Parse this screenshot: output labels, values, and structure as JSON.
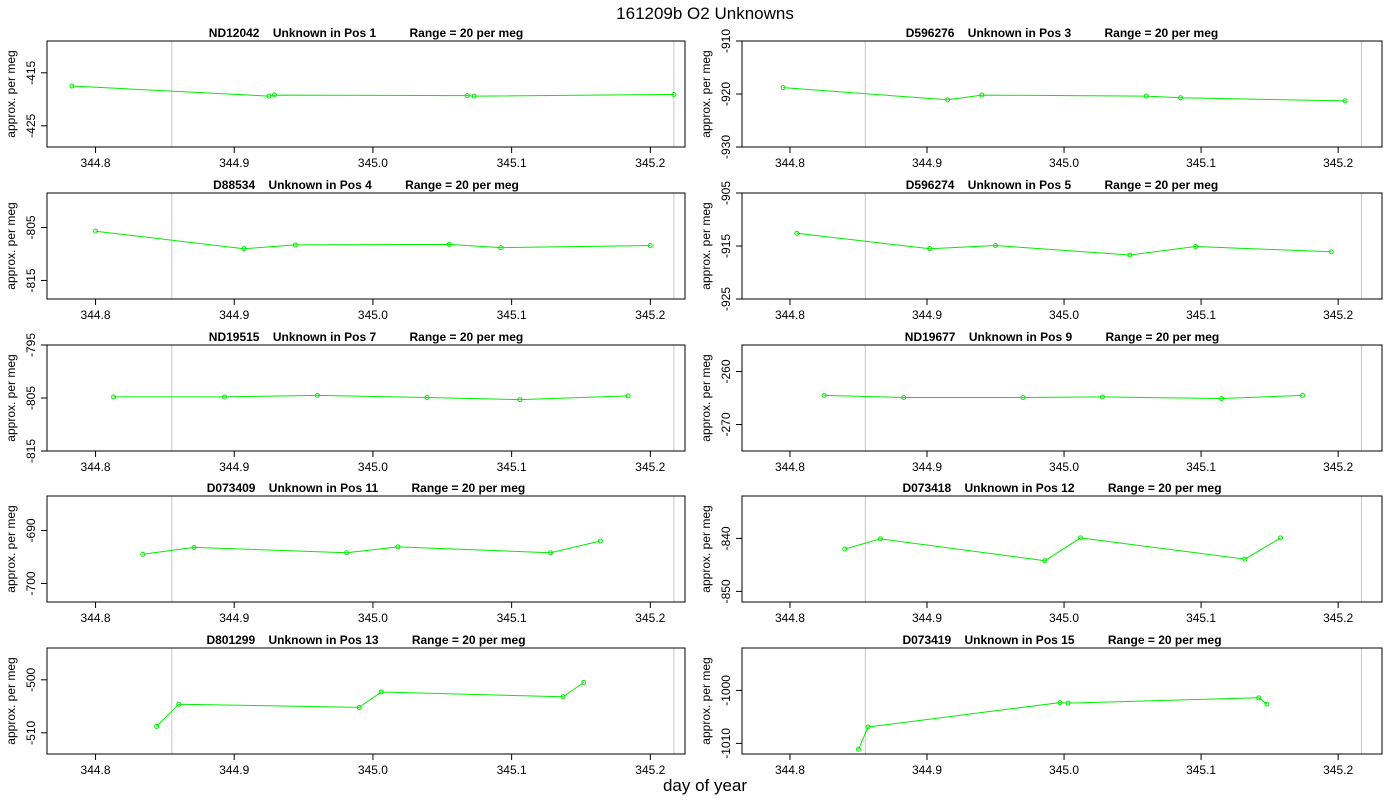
{
  "figure": {
    "title": "161209b  O2 Unknowns",
    "xlabel": "day of year"
  },
  "colors": {
    "series": "#00ee00",
    "marker": "#00ee00",
    "vline": "#c8c8c8"
  },
  "chart_data": [
    {
      "type": "line",
      "title": "ND12042    Unknown in Pos 1          Range = 20 per meg",
      "ylabel": "approx. per meg",
      "xlim": [
        344.765,
        345.225
      ],
      "ylim": [
        -429,
        -409
      ],
      "xticks": [
        344.8,
        344.9,
        345.0,
        345.1,
        345.2
      ],
      "xtick_labels": [
        "344.8",
        "344.9",
        "345.0",
        "345.1",
        "345.2"
      ],
      "yticks": [
        -415,
        -425
      ],
      "ytick_labels": [
        "-415",
        "-425"
      ],
      "vlines": [
        344.855,
        345.217
      ],
      "x": [
        344.783,
        344.925,
        344.929,
        345.068,
        345.073,
        345.217
      ],
      "y": [
        -417.5,
        -419.4,
        -419.2,
        -419.3,
        -419.4,
        -419.1
      ]
    },
    {
      "type": "line",
      "title": "D596276    Unknown in Pos 3          Range = 20 per meg",
      "ylabel": "approx. per meg",
      "xlim": [
        344.765,
        345.232
      ],
      "ylim": [
        -930,
        -910
      ],
      "xticks": [
        344.8,
        344.9,
        345.0,
        345.1,
        345.2
      ],
      "xtick_labels": [
        "344.8",
        "344.9",
        "345.0",
        "345.1",
        "345.2"
      ],
      "yticks": [
        -910,
        -920,
        -930
      ],
      "ytick_labels": [
        "-910",
        "-920",
        "-930"
      ],
      "vlines": [
        344.855,
        345.217
      ],
      "x": [
        344.795,
        344.915,
        344.94,
        345.06,
        345.085,
        345.205
      ],
      "y": [
        -918.8,
        -921.1,
        -920.2,
        -920.4,
        -920.7,
        -921.3
      ]
    },
    {
      "type": "line",
      "title": "D88534    Unknown in Pos 4          Range = 20 per meg",
      "ylabel": "approx. per meg",
      "xlim": [
        344.765,
        345.225
      ],
      "ylim": [
        -818.5,
        -798.5
      ],
      "xticks": [
        344.8,
        344.9,
        345.0,
        345.1,
        345.2
      ],
      "xtick_labels": [
        "344.8",
        "344.9",
        "345.0",
        "345.1",
        "345.2"
      ],
      "yticks": [
        -805,
        -815
      ],
      "ytick_labels": [
        "-805",
        "-815"
      ],
      "vlines": [
        344.855,
        345.217
      ],
      "x": [
        344.8,
        344.907,
        344.944,
        345.055,
        345.092,
        345.2
      ],
      "y": [
        -805.7,
        -809.0,
        -808.3,
        -808.2,
        -808.8,
        -808.4
      ]
    },
    {
      "type": "line",
      "title": "D596274    Unknown in Pos 5          Range = 20 per meg",
      "ylabel": "approx. per meg",
      "xlim": [
        344.765,
        345.232
      ],
      "ylim": [
        -925,
        -905
      ],
      "xticks": [
        344.8,
        344.9,
        345.0,
        345.1,
        345.2
      ],
      "xtick_labels": [
        "344.8",
        "344.9",
        "345.0",
        "345.1",
        "345.2"
      ],
      "yticks": [
        -905,
        -915,
        -925
      ],
      "ytick_labels": [
        "-905",
        "-915",
        "-925"
      ],
      "vlines": [
        344.855,
        345.217
      ],
      "x": [
        344.805,
        344.902,
        344.95,
        345.048,
        345.096,
        345.195
      ],
      "y": [
        -912.6,
        -915.5,
        -914.9,
        -916.7,
        -915.1,
        -916.1
      ]
    },
    {
      "type": "line",
      "title": "ND19515    Unknown in Pos 7          Range = 20 per meg",
      "ylabel": "approx. per meg",
      "xlim": [
        344.765,
        345.225
      ],
      "ylim": [
        -815,
        -795
      ],
      "xticks": [
        344.8,
        344.9,
        345.0,
        345.1,
        345.2
      ],
      "xtick_labels": [
        "344.8",
        "344.9",
        "345.0",
        "345.1",
        "345.2"
      ],
      "yticks": [
        -795,
        -805,
        -815
      ],
      "ytick_labels": [
        "-795",
        "-805",
        "-815"
      ],
      "vlines": [
        344.855,
        345.217
      ],
      "x": [
        344.813,
        344.893,
        344.96,
        345.039,
        345.106,
        345.184
      ],
      "y": [
        -804.8,
        -804.8,
        -804.5,
        -804.9,
        -805.3,
        -804.6
      ]
    },
    {
      "type": "line",
      "title": "ND19677    Unknown in Pos 9          Range = 20 per meg",
      "ylabel": "approx. per meg",
      "xlim": [
        344.765,
        345.232
      ],
      "ylim": [
        -275,
        -255
      ],
      "xticks": [
        344.8,
        344.9,
        345.0,
        345.1,
        345.2
      ],
      "xtick_labels": [
        "344.8",
        "344.9",
        "345.0",
        "345.1",
        "345.2"
      ],
      "yticks": [
        -260,
        -270
      ],
      "ytick_labels": [
        "-260",
        "-270"
      ],
      "vlines": [
        344.855,
        345.217
      ],
      "x": [
        344.825,
        344.883,
        344.97,
        345.028,
        345.115,
        345.174
      ],
      "y": [
        -264.5,
        -264.9,
        -264.9,
        -264.8,
        -265.1,
        -264.5
      ]
    },
    {
      "type": "line",
      "title": "D073409    Unknown in Pos 11          Range = 20 per meg",
      "ylabel": "approx. per meg",
      "xlim": [
        344.765,
        345.225
      ],
      "ylim": [
        -703.5,
        -683.5
      ],
      "xticks": [
        344.8,
        344.9,
        345.0,
        345.1,
        345.2
      ],
      "xtick_labels": [
        "344.8",
        "344.9",
        "345.0",
        "345.1",
        "345.2"
      ],
      "yticks": [
        -690,
        -700
      ],
      "ytick_labels": [
        "-690",
        "-700"
      ],
      "vlines": [
        344.855,
        345.217
      ],
      "x": [
        344.834,
        344.871,
        344.981,
        345.018,
        345.128,
        345.164
      ],
      "y": [
        -694.5,
        -693.2,
        -694.2,
        -693.1,
        -694.2,
        -692.0
      ]
    },
    {
      "type": "line",
      "title": "D073418    Unknown in Pos 12          Range = 20 per meg",
      "ylabel": "approx. per meg",
      "xlim": [
        344.765,
        345.232
      ],
      "ylim": [
        -852,
        -832
      ],
      "xticks": [
        344.8,
        344.9,
        345.0,
        345.1,
        345.2
      ],
      "xtick_labels": [
        "344.8",
        "344.9",
        "345.0",
        "345.1",
        "345.2"
      ],
      "yticks": [
        -840,
        -850
      ],
      "ytick_labels": [
        "-840",
        "-850"
      ],
      "vlines": [
        344.855,
        345.217
      ],
      "x": [
        344.84,
        344.866,
        344.986,
        345.012,
        345.132,
        345.158
      ],
      "y": [
        -842.0,
        -840.1,
        -844.2,
        -839.9,
        -843.9,
        -839.9
      ]
    },
    {
      "type": "line",
      "title": "D801299    Unknown in Pos 13          Range = 20 per meg",
      "ylabel": "approx. per meg",
      "xlim": [
        344.765,
        345.225
      ],
      "ylim": [
        -514,
        -494
      ],
      "xticks": [
        344.8,
        344.9,
        345.0,
        345.1,
        345.2
      ],
      "xtick_labels": [
        "344.8",
        "344.9",
        "345.0",
        "345.1",
        "345.2"
      ],
      "yticks": [
        -500,
        -510
      ],
      "ytick_labels": [
        "-500",
        "-510"
      ],
      "vlines": [
        344.855,
        345.217
      ],
      "x": [
        344.844,
        344.86,
        344.99,
        345.006,
        345.137,
        345.152
      ],
      "y": [
        -508.8,
        -504.6,
        -505.2,
        -502.3,
        -503.2,
        -500.5
      ]
    },
    {
      "type": "line",
      "title": "D073419    Unknown in Pos 15          Range = 20 per meg",
      "ylabel": "approx. per meg",
      "xlim": [
        344.765,
        345.232
      ],
      "ylim": [
        -1012,
        -992
      ],
      "xticks": [
        344.8,
        344.9,
        345.0,
        345.1,
        345.2
      ],
      "xtick_labels": [
        "344.8",
        "344.9",
        "345.0",
        "345.1",
        "345.2"
      ],
      "yticks": [
        -1000,
        -1010
      ],
      "ytick_labels": [
        "-1000",
        "-1010"
      ],
      "vlines": [
        344.855,
        345.217
      ],
      "x": [
        344.85,
        344.857,
        344.997,
        345.003,
        345.142,
        345.148
      ],
      "y": [
        -1011.1,
        -1006.9,
        -1002.3,
        -1002.4,
        -1001.4,
        -1002.6
      ]
    }
  ]
}
